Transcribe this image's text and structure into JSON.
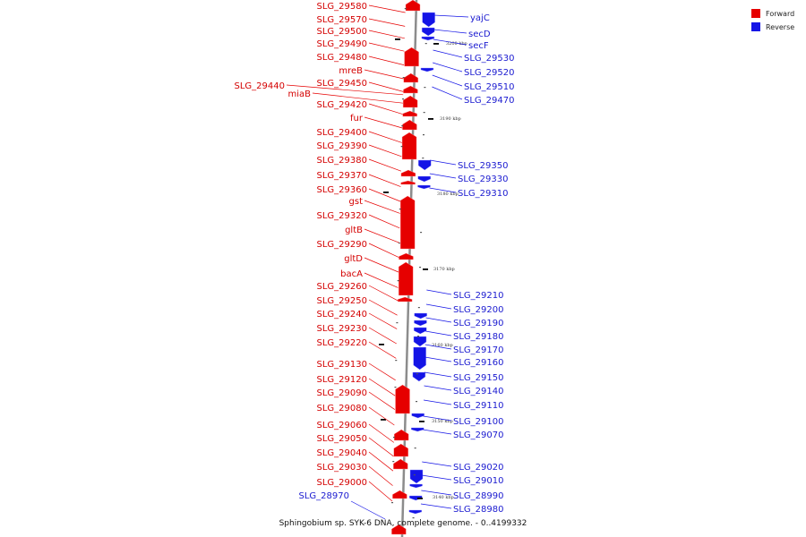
{
  "caption": "Sphingobium sp. SYK-6 DNA, complete genome. - 0..4199332",
  "colors": {
    "forward": "#e60000",
    "reverse": "#1414e6",
    "backbone": "#8c8c8c"
  },
  "legend": [
    {
      "label": "Forward",
      "color": "#e60000"
    },
    {
      "label": "Reverse",
      "color": "#1414e6"
    }
  ],
  "ticks": [
    "3200 kbp",
    "3190 kbp",
    "3180 kbp",
    "3170 kbp",
    "3160 kbp",
    "3150 kbp",
    "3140 kbp"
  ],
  "forward_genes": [
    "SLG_29580",
    "SLG_29570",
    "SLG_29500",
    "SLG_29490",
    "SLG_29480",
    "mreB",
    "SLG_29450",
    "SLG_29440",
    "miaB",
    "SLG_29420",
    "fur",
    "SLG_29400",
    "SLG_29390",
    "SLG_29380",
    "SLG_29370",
    "SLG_29360",
    "gst",
    "SLG_29320",
    "gltB",
    "SLG_29290",
    "gltD",
    "bacA",
    "SLG_29260",
    "SLG_29250",
    "SLG_29240",
    "SLG_29230",
    "SLG_29220",
    "SLG_29130",
    "SLG_29120",
    "SLG_29090",
    "SLG_29080",
    "SLG_29060",
    "SLG_29050",
    "SLG_29040",
    "SLG_29030",
    "SLG_29000"
  ],
  "reverse_genes": [
    "yajC",
    "secD",
    "secF",
    "SLG_29530",
    "SLG_29520",
    "SLG_29510",
    "SLG_29470",
    "SLG_29350",
    "SLG_29330",
    "SLG_29310",
    "SLG_29210",
    "SLG_29200",
    "SLG_29190",
    "SLG_29180",
    "SLG_29170",
    "SLG_29160",
    "SLG_29150",
    "SLG_29140",
    "SLG_29110",
    "SLG_29100",
    "SLG_29070",
    "SLG_29020",
    "SLG_29010",
    "SLG_28990",
    "SLG_28980",
    "SLG_28970"
  ]
}
